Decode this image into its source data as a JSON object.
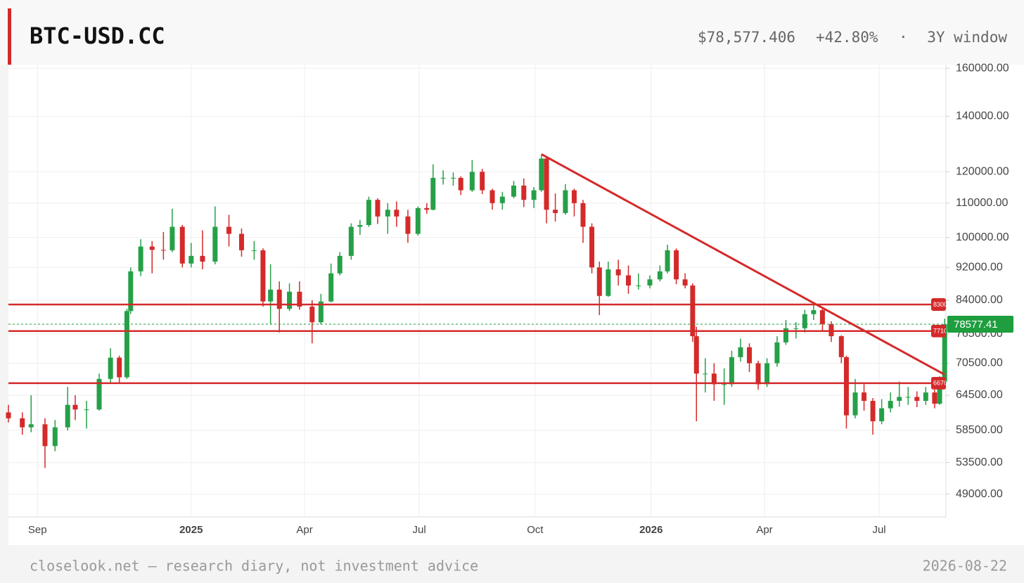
{
  "header": {
    "title": "BTC-USD.CC",
    "price": "$78,577.406",
    "change": "+42.80%",
    "separator": "·",
    "window": "3Y window"
  },
  "footer": {
    "note": "closelook.net — research diary, not investment advice",
    "date": "2026-08-22"
  },
  "chart_data": {
    "type": "candlestick",
    "log_scale": true,
    "grid": true,
    "up_color": "#26a048",
    "down_color": "#d42a2a",
    "level_color": "#d42a2a",
    "last_price_color": "#1e9e3e",
    "x": [
      "2024-08-09",
      "2024-08-20",
      "2024-08-27",
      "2024-09-07",
      "2024-09-15",
      "2024-09-25",
      "2024-10-01",
      "2024-10-10",
      "2024-10-20",
      "2024-10-29",
      "2024-11-05",
      "2024-11-11",
      "2024-11-14",
      "2024-11-22",
      "2024-12-01",
      "2024-12-10",
      "2024-12-17",
      "2024-12-25",
      "2025-01-01",
      "2025-01-10",
      "2025-01-20",
      "2025-01-31",
      "2025-02-10",
      "2025-02-20",
      "2025-02-27",
      "2025-03-05",
      "2025-03-12",
      "2025-03-20",
      "2025-03-28",
      "2025-04-07",
      "2025-04-14",
      "2025-04-22",
      "2025-04-29",
      "2025-05-08",
      "2025-05-15",
      "2025-05-22",
      "2025-05-29",
      "2025-06-06",
      "2025-06-13",
      "2025-06-22",
      "2025-06-30",
      "2025-07-07",
      "2025-07-12",
      "2025-07-20",
      "2025-07-28",
      "2025-08-03",
      "2025-08-12",
      "2025-08-20",
      "2025-08-28",
      "2025-09-05",
      "2025-09-14",
      "2025-09-22",
      "2025-09-30",
      "2025-10-06",
      "2025-10-10",
      "2025-10-17",
      "2025-10-25",
      "2025-11-01",
      "2025-11-08",
      "2025-11-15",
      "2025-11-21",
      "2025-11-28",
      "2025-12-06",
      "2025-12-14",
      "2025-12-22",
      "2025-12-31",
      "2026-01-08",
      "2026-01-14",
      "2026-01-21",
      "2026-01-28",
      "2026-02-03",
      "2026-02-06",
      "2026-02-13",
      "2026-02-20",
      "2026-02-28",
      "2026-03-06",
      "2026-03-13",
      "2026-03-20",
      "2026-03-27",
      "2026-04-03",
      "2026-04-11",
      "2026-04-18",
      "2026-04-26",
      "2026-05-03",
      "2026-05-10",
      "2026-05-17",
      "2026-05-24",
      "2026-06-01",
      "2026-06-05",
      "2026-06-12",
      "2026-06-19",
      "2026-06-26",
      "2026-07-03",
      "2026-07-10",
      "2026-07-17",
      "2026-07-24",
      "2026-07-31",
      "2026-08-07",
      "2026-08-14",
      "2026-08-18",
      "2026-08-22"
    ],
    "open": [
      61500,
      60500,
      59000,
      59500,
      56000,
      59000,
      62800,
      62000,
      62000,
      67500,
      71600,
      67800,
      81500,
      91000,
      97500,
      96600,
      96500,
      103000,
      93000,
      95000,
      93500,
      103000,
      101000,
      96500,
      96500,
      83700,
      86500,
      82000,
      86000,
      82500,
      79000,
      83700,
      90500,
      95000,
      103000,
      103500,
      111000,
      106000,
      108000,
      106000,
      101000,
      108500,
      108000,
      118000,
      118000,
      118000,
      114000,
      120000,
      114000,
      110000,
      112000,
      115500,
      111000,
      114000,
      124500,
      108000,
      107000,
      114000,
      110000,
      103000,
      92000,
      85000,
      91500,
      90000,
      87500,
      87500,
      89000,
      91000,
      96500,
      89000,
      87500,
      76000,
      68500,
      68500,
      66500,
      66500,
      71700,
      73700,
      70500,
      66500,
      70500,
      74700,
      77700,
      77700,
      80800,
      81700,
      78600,
      76000,
      71700,
      61000,
      65000,
      63500,
      60000,
      62200,
      63500,
      64200,
      64200,
      63500,
      65000,
      63000,
      67000
    ],
    "high": [
      62800,
      61500,
      64500,
      60500,
      60200,
      66000,
      64500,
      63500,
      68500,
      73500,
      72000,
      82000,
      92000,
      99500,
      99000,
      101500,
      108300,
      103500,
      98500,
      102000,
      109000,
      106500,
      102500,
      99000,
      97000,
      92800,
      88500,
      88000,
      88500,
      84000,
      85500,
      93000,
      96000,
      104000,
      105000,
      112000,
      111500,
      110000,
      110500,
      108000,
      109000,
      110000,
      122500,
      120500,
      119800,
      118500,
      124000,
      121000,
      114500,
      113500,
      117000,
      117800,
      115000,
      126000,
      125000,
      113000,
      116000,
      114500,
      111000,
      104000,
      93500,
      93500,
      94000,
      92500,
      90500,
      90000,
      92500,
      98000,
      97000,
      90500,
      88000,
      78000,
      71500,
      70500,
      69500,
      73000,
      75500,
      74500,
      71000,
      71500,
      76000,
      79500,
      79000,
      81800,
      83500,
      82200,
      79200,
      76200,
      72000,
      67500,
      66500,
      64000,
      63800,
      65000,
      67000,
      66000,
      65200,
      66000,
      65500,
      68000,
      79800
    ],
    "low": [
      59800,
      57800,
      58200,
      52700,
      55200,
      58500,
      60200,
      58800,
      61800,
      66800,
      66800,
      67500,
      80800,
      89800,
      90500,
      94000,
      96000,
      92000,
      92000,
      91500,
      92800,
      97500,
      94800,
      94000,
      82500,
      78500,
      76800,
      81500,
      81800,
      74500,
      78500,
      83500,
      90000,
      94000,
      100700,
      103000,
      103800,
      101000,
      103000,
      98500,
      100500,
      106800,
      107800,
      115800,
      115500,
      112500,
      113500,
      112800,
      108000,
      108000,
      111500,
      108800,
      108500,
      113500,
      104000,
      104500,
      106500,
      106000,
      98500,
      90500,
      80600,
      84800,
      87500,
      85500,
      86500,
      86800,
      88500,
      90500,
      87800,
      86800,
      74800,
      60000,
      65000,
      63500,
      62800,
      66000,
      70800,
      68800,
      65500,
      66000,
      69800,
      74200,
      75500,
      76800,
      79500,
      77000,
      74800,
      70500,
      58800,
      60500,
      61800,
      57800,
      59500,
      61500,
      62500,
      62800,
      62400,
      62800,
      62200,
      62800,
      66800
    ],
    "close": [
      60500,
      59000,
      59500,
      56000,
      59000,
      62800,
      62000,
      62000,
      67500,
      71600,
      67800,
      81500,
      91000,
      97500,
      96600,
      96500,
      103000,
      93000,
      95000,
      93500,
      103000,
      101000,
      96500,
      96500,
      83700,
      86500,
      82000,
      86000,
      82500,
      79000,
      83700,
      90500,
      95000,
      103000,
      103500,
      111000,
      106000,
      108000,
      106000,
      101000,
      108500,
      108000,
      118000,
      118000,
      118000,
      114000,
      120000,
      114000,
      110000,
      112000,
      115500,
      111000,
      114000,
      124500,
      108000,
      107000,
      114000,
      110000,
      103000,
      92000,
      85000,
      91500,
      90000,
      87500,
      87500,
      89000,
      91000,
      96500,
      89000,
      87500,
      76000,
      68500,
      68500,
      66500,
      66500,
      71700,
      73700,
      70500,
      66500,
      70500,
      74700,
      77700,
      77700,
      80800,
      81700,
      78600,
      76000,
      71700,
      61000,
      65000,
      63500,
      60000,
      62200,
      63500,
      64200,
      64200,
      63500,
      65000,
      63000,
      67000,
      78577.41
    ],
    "xlim": [
      "2024-08-09",
      "2026-08-23"
    ],
    "xticks": [
      {
        "value": "2024-09-01",
        "label": "Sep"
      },
      {
        "value": "2025-01-01",
        "label": "2025"
      },
      {
        "value": "2025-04-01",
        "label": "Apr"
      },
      {
        "value": "2025-07-01",
        "label": "Jul"
      },
      {
        "value": "2025-10-01",
        "label": "Oct"
      },
      {
        "value": "2026-01-01",
        "label": "2026"
      },
      {
        "value": "2026-04-01",
        "label": "Apr"
      },
      {
        "value": "2026-07-01",
        "label": "Jul"
      }
    ],
    "ylim": [
      46000,
      161600
    ],
    "yticks": [
      {
        "value": 160000,
        "label": "160000.00"
      },
      {
        "value": 140000,
        "label": "140000.00"
      },
      {
        "value": 120000,
        "label": "120000.00"
      },
      {
        "value": 110000,
        "label": "110000.00"
      },
      {
        "value": 100000,
        "label": "100000.00"
      },
      {
        "value": 92000,
        "label": "92000.00"
      },
      {
        "value": 84000,
        "label": "84000.00"
      },
      {
        "value": 76500,
        "label": "76500.00"
      },
      {
        "value": 70500,
        "label": "70500.00"
      },
      {
        "value": 64500,
        "label": "64500.00"
      },
      {
        "value": 58500,
        "label": "58500.00"
      },
      {
        "value": 53500,
        "label": "53500.00"
      },
      {
        "value": 49000,
        "label": "49000.00"
      }
    ],
    "levels": [
      83000,
      77100,
      66700
    ],
    "trendline": {
      "x": [
        "2025-10-06",
        "2026-08-22"
      ],
      "y": [
        126000,
        68300
      ]
    },
    "last_price": 78577.41
  }
}
